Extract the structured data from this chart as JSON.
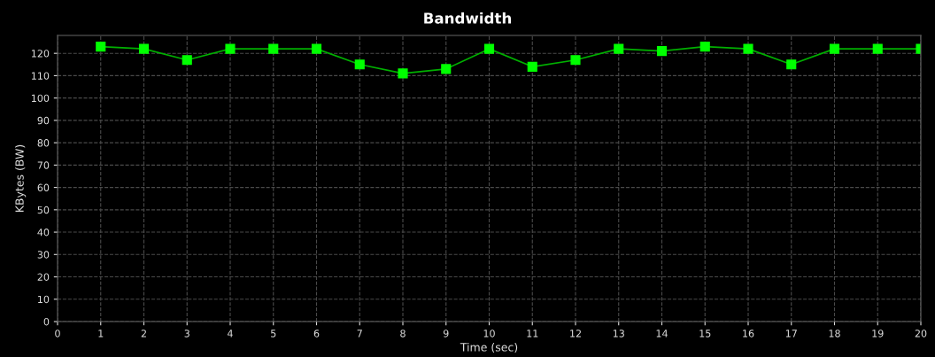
{
  "chart_data": {
    "type": "line",
    "title": "Bandwidth",
    "xlabel": "Time (sec)",
    "ylabel": "KBytes (BW)",
    "x": [
      1,
      2,
      3,
      4,
      5,
      6,
      7,
      8,
      9,
      10,
      11,
      12,
      13,
      14,
      15,
      16,
      17,
      18,
      19,
      20
    ],
    "series": [
      {
        "color": "#00ff00",
        "values": [
          123,
          122,
          117,
          122,
          122,
          122,
          115,
          111,
          113,
          122,
          114,
          117,
          122,
          121,
          123,
          122,
          115,
          122,
          122,
          122
        ]
      }
    ],
    "xlim": [
      0,
      20
    ],
    "xticks": [
      0,
      1,
      2,
      3,
      4,
      5,
      6,
      7,
      8,
      9,
      10,
      11,
      12,
      13,
      14,
      15,
      16,
      17,
      18,
      19,
      20
    ],
    "ylim": [
      0,
      128
    ],
    "yticks": [
      0,
      10,
      20,
      30,
      40,
      50,
      60,
      70,
      80,
      90,
      100,
      110,
      120
    ],
    "grid": true,
    "marker": "square",
    "line_style": "solid"
  }
}
